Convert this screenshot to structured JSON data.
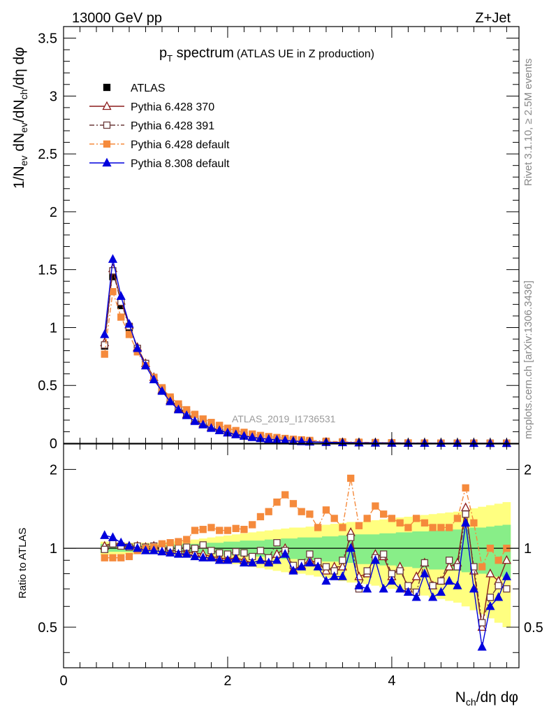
{
  "header": {
    "left": "13000 GeV pp",
    "right": "Z+Jet"
  },
  "title": {
    "main": "p",
    "main_sub": "T",
    "main_rest": " spectrum",
    "suffix": "(ATLAS UE in Z production)"
  },
  "side_labels": {
    "rivet": "Rivet 3.1.10, ≥ 2.5M events",
    "mcplots": "mcplots.cern.ch [arXiv:1306.3436]"
  },
  "watermark": "ATLAS_2019_I1736531",
  "axes": {
    "ylabel_top": "1/N_ev dN_ev/dN_ch/dη dφ",
    "ylabel_top_parts": [
      "1/N",
      "ev",
      " dN",
      "ev",
      "/dN",
      "ch",
      "/dη dφ"
    ],
    "ylabel_bottom": "Ratio to ATLAS",
    "xlabel_parts": [
      "N",
      "ch",
      "/dη dφ"
    ],
    "top_yticks": [
      "0",
      "0.5",
      "1",
      "1.5",
      "2",
      "2.5",
      "3",
      "3.5"
    ],
    "bottom_yticks": [
      "0.5",
      "1",
      "2"
    ],
    "xticks": [
      "0",
      "2",
      "4"
    ]
  },
  "legend": [
    {
      "label": "ATLAS",
      "color": "#000000",
      "marker": "filled-square",
      "line": "none"
    },
    {
      "label": "Pythia 6.428 370",
      "color": "#8b1a1a",
      "marker": "open-triangle",
      "line": "solid"
    },
    {
      "label": "Pythia 6.428 391",
      "color": "#6b3a3a",
      "marker": "open-square",
      "line": "dash-dot"
    },
    {
      "label": "Pythia 6.428 default",
      "color": "#f58a3c",
      "marker": "filled-square",
      "line": "dash-dot"
    },
    {
      "label": "Pythia 8.308 default",
      "color": "#0000dd",
      "marker": "filled-triangle",
      "line": "solid"
    }
  ],
  "chart_data": [
    {
      "type": "line",
      "panel": "main",
      "xlim": [
        0,
        5.55
      ],
      "ylim": [
        0,
        3.6
      ],
      "x": [
        0.5,
        0.6,
        0.7,
        0.8,
        0.9,
        1.0,
        1.1,
        1.2,
        1.3,
        1.4,
        1.5,
        1.6,
        1.7,
        1.8,
        1.9,
        2.0,
        2.1,
        2.2,
        2.3,
        2.4,
        2.5,
        2.6,
        2.7,
        2.8,
        2.9,
        3.0,
        3.2,
        3.4,
        3.6,
        3.8,
        4.0,
        4.2,
        4.4,
        4.6,
        4.8,
        5.0,
        5.2,
        5.4
      ],
      "series": [
        {
          "name": "ATLAS",
          "values": [
            0.84,
            1.44,
            1.19,
            1.0,
            0.81,
            0.68,
            0.56,
            0.46,
            0.38,
            0.31,
            0.26,
            0.21,
            0.18,
            0.15,
            0.12,
            0.1,
            0.085,
            0.07,
            0.058,
            0.048,
            0.04,
            0.034,
            0.028,
            0.023,
            0.019,
            0.016,
            0.011,
            0.008,
            0.006,
            0.004,
            0.003,
            0.002,
            0.0016,
            0.0012,
            0.0009,
            0.0007,
            0.0005,
            0.0004
          ]
        },
        {
          "name": "Pythia 6.428 370",
          "values": [
            0.87,
            1.51,
            1.23,
            1.02,
            0.83,
            0.69,
            0.57,
            0.46,
            0.37,
            0.3,
            0.25,
            0.2,
            0.17,
            0.14,
            0.11,
            0.093,
            0.078,
            0.064,
            0.053,
            0.044,
            0.036,
            0.03,
            0.025,
            0.019,
            0.016,
            0.013,
            0.009,
            0.007,
            0.005,
            0.0035,
            0.0025,
            0.0017,
            0.0013,
            0.001,
            0.0008,
            0.0006,
            0.0004,
            0.0003
          ]
        },
        {
          "name": "Pythia 6.428 391",
          "values": [
            0.85,
            1.49,
            1.22,
            1.01,
            0.82,
            0.69,
            0.57,
            0.47,
            0.38,
            0.31,
            0.26,
            0.21,
            0.17,
            0.14,
            0.12,
            0.096,
            0.08,
            0.066,
            0.055,
            0.046,
            0.038,
            0.032,
            0.026,
            0.02,
            0.017,
            0.014,
            0.01,
            0.007,
            0.005,
            0.0037,
            0.0027,
            0.0018,
            0.0014,
            0.0011,
            0.0008,
            0.0006,
            0.0004,
            0.0003
          ]
        },
        {
          "name": "Pythia 6.428 default",
          "values": [
            0.77,
            1.31,
            1.09,
            0.94,
            0.79,
            0.67,
            0.57,
            0.48,
            0.4,
            0.34,
            0.29,
            0.25,
            0.21,
            0.18,
            0.155,
            0.13,
            0.11,
            0.095,
            0.08,
            0.068,
            0.058,
            0.05,
            0.042,
            0.035,
            0.03,
            0.025,
            0.018,
            0.013,
            0.0095,
            0.007,
            0.005,
            0.0036,
            0.0027,
            0.002,
            0.0015,
            0.0011,
            0.0008,
            0.0006
          ]
        },
        {
          "name": "Pythia 8.308 default",
          "values": [
            0.94,
            1.59,
            1.27,
            1.03,
            0.82,
            0.67,
            0.55,
            0.45,
            0.36,
            0.29,
            0.24,
            0.19,
            0.16,
            0.13,
            0.11,
            0.09,
            0.075,
            0.062,
            0.051,
            0.042,
            0.035,
            0.029,
            0.024,
            0.019,
            0.015,
            0.012,
            0.0085,
            0.006,
            0.0045,
            0.0033,
            0.0024,
            0.0016,
            0.0012,
            0.0009,
            0.0007,
            0.0005,
            0.0003,
            0.0002
          ]
        }
      ]
    },
    {
      "type": "line",
      "panel": "ratio",
      "xlim": [
        0,
        5.55
      ],
      "ylim": [
        0.35,
        2.5
      ],
      "reference_line": 1,
      "x": [
        0.5,
        0.6,
        0.7,
        0.8,
        0.9,
        1.0,
        1.1,
        1.2,
        1.3,
        1.4,
        1.5,
        1.6,
        1.7,
        1.8,
        1.9,
        2.0,
        2.1,
        2.2,
        2.3,
        2.4,
        2.5,
        2.6,
        2.7,
        2.8,
        2.9,
        3.0,
        3.1,
        3.2,
        3.3,
        3.4,
        3.5,
        3.6,
        3.7,
        3.8,
        3.9,
        4.0,
        4.1,
        4.2,
        4.3,
        4.4,
        4.5,
        4.6,
        4.7,
        4.8,
        4.9,
        5.0,
        5.1,
        5.2,
        5.3,
        5.4
      ],
      "band_inner": [
        0.04,
        0.03,
        0.03,
        0.03,
        0.03,
        0.03,
        0.03,
        0.03,
        0.03,
        0.04,
        0.04,
        0.04,
        0.05,
        0.05,
        0.05,
        0.06,
        0.06,
        0.07,
        0.07,
        0.07,
        0.08,
        0.08,
        0.09,
        0.09,
        0.1,
        0.1,
        0.1,
        0.11,
        0.11,
        0.12,
        0.12,
        0.13,
        0.13,
        0.13,
        0.14,
        0.14,
        0.15,
        0.15,
        0.16,
        0.16,
        0.17,
        0.17,
        0.18,
        0.18,
        0.19,
        0.2,
        0.2,
        0.21,
        0.22,
        0.23
      ],
      "band_outer": [
        0.06,
        0.05,
        0.05,
        0.05,
        0.05,
        0.05,
        0.05,
        0.05,
        0.06,
        0.07,
        0.07,
        0.08,
        0.09,
        0.1,
        0.11,
        0.12,
        0.13,
        0.14,
        0.15,
        0.16,
        0.17,
        0.18,
        0.19,
        0.2,
        0.2,
        0.21,
        0.22,
        0.23,
        0.24,
        0.25,
        0.26,
        0.26,
        0.27,
        0.28,
        0.29,
        0.3,
        0.31,
        0.32,
        0.33,
        0.34,
        0.35,
        0.36,
        0.37,
        0.38,
        0.4,
        0.42,
        0.44,
        0.46,
        0.48,
        0.5
      ],
      "series": [
        {
          "name": "Pythia 6.428 370",
          "values": [
            1.02,
            1.05,
            1.03,
            1.02,
            1.02,
            1.01,
            1.02,
            1.0,
            0.98,
            0.98,
            0.97,
            0.96,
            0.95,
            0.93,
            0.92,
            0.91,
            0.92,
            0.9,
            0.88,
            0.9,
            0.89,
            0.95,
            1.0,
            0.83,
            0.86,
            0.9,
            0.88,
            0.82,
            0.85,
            0.85,
            1.15,
            0.78,
            0.8,
            0.95,
            0.93,
            0.78,
            0.85,
            0.7,
            0.78,
            0.88,
            0.72,
            0.75,
            0.85,
            0.88,
            1.43,
            0.82,
            0.5,
            0.8,
            0.75,
            0.9
          ]
        },
        {
          "name": "Pythia 6.428 391",
          "values": [
            0.99,
            1.04,
            1.02,
            1.01,
            1.02,
            1.01,
            1.02,
            1.0,
            1.01,
            1.0,
            1.01,
            1.0,
            1.03,
            0.98,
            0.96,
            0.95,
            0.97,
            0.96,
            0.93,
            0.98,
            0.92,
            1.05,
            0.98,
            0.86,
            0.88,
            0.95,
            0.89,
            0.85,
            0.82,
            0.9,
            1.1,
            0.7,
            0.82,
            0.92,
            0.95,
            0.8,
            0.82,
            0.72,
            0.68,
            0.88,
            0.72,
            0.75,
            0.9,
            0.85,
            1.35,
            0.85,
            0.52,
            0.65,
            0.72,
            0.7
          ]
        },
        {
          "name": "Pythia 6.428 default",
          "values": [
            0.92,
            0.92,
            0.92,
            0.93,
            0.98,
            1.0,
            1.01,
            1.04,
            1.05,
            1.06,
            1.08,
            1.17,
            1.18,
            1.2,
            1.17,
            1.17,
            1.19,
            1.18,
            1.23,
            1.32,
            1.38,
            1.5,
            1.6,
            1.48,
            1.38,
            1.35,
            1.2,
            1.4,
            1.3,
            1.2,
            1.85,
            1.22,
            1.3,
            1.45,
            1.35,
            1.3,
            1.25,
            1.2,
            1.3,
            1.25,
            1.2,
            1.2,
            1.2,
            1.3,
            1.7,
            1.25,
            0.85,
            1.0,
            0.9,
            1.0
          ]
        },
        {
          "name": "Pythia 8.308 default",
          "values": [
            1.12,
            1.1,
            1.05,
            1.02,
            1.0,
            0.98,
            0.98,
            0.97,
            0.96,
            0.95,
            0.95,
            0.93,
            0.92,
            0.92,
            0.9,
            0.9,
            0.91,
            0.88,
            0.88,
            0.9,
            0.88,
            0.9,
            0.95,
            0.82,
            0.85,
            0.88,
            0.85,
            0.75,
            0.78,
            0.78,
            1.0,
            0.72,
            0.7,
            0.9,
            0.7,
            0.75,
            0.7,
            0.68,
            0.65,
            0.8,
            0.65,
            0.68,
            0.75,
            0.72,
            1.25,
            0.7,
            0.42,
            0.6,
            0.65,
            0.78
          ]
        }
      ]
    }
  ]
}
